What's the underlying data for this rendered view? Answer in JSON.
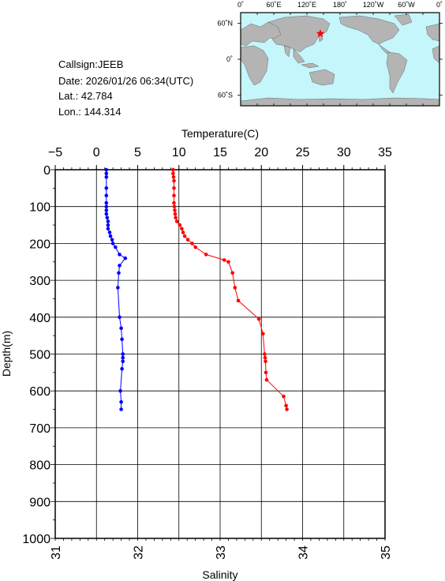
{
  "info": {
    "callsign": "Callsign:JEEB",
    "date": "Date:  2026/01/26 06:34(UTC)",
    "lat": "Lat.:  42.784",
    "lon": "Lon.:  144.314"
  },
  "map": {
    "lon_labels": [
      "0˚",
      "60˚E",
      "120˚E",
      "180˚",
      "120˚W",
      "60˚W",
      "0˚"
    ],
    "lat_labels": [
      "60˚N",
      "0˚",
      "60˚S"
    ],
    "ocean_color": "#c4f6fb",
    "land_color": "#b4b4b4",
    "marker_color": "#ff0000",
    "marker_lon": 144.314,
    "marker_lat": 42.784
  },
  "chart_data": {
    "type": "scatter",
    "temperature_axis": {
      "label": "Temperature(C)",
      "range": [
        -5,
        35
      ],
      "ticks": [
        -5,
        0,
        5,
        10,
        15,
        20,
        25,
        30,
        35
      ],
      "position": "top"
    },
    "salinity_axis": {
      "label": "Salinity",
      "range": [
        31,
        35
      ],
      "ticks": [
        31,
        32,
        33,
        34,
        35
      ],
      "position": "bottom"
    },
    "depth_axis": {
      "label": "Depth(m)",
      "range": [
        0,
        1000
      ],
      "ticks": [
        0,
        100,
        200,
        300,
        400,
        500,
        600,
        700,
        800,
        900,
        1000
      ],
      "inverted": true
    },
    "grid": true,
    "series": [
      {
        "key": "temperature",
        "color": "#ff0000",
        "points": [
          [
            9.3,
            0
          ],
          [
            9.3,
            10
          ],
          [
            9.35,
            20
          ],
          [
            9.4,
            30
          ],
          [
            9.4,
            50
          ],
          [
            9.4,
            70
          ],
          [
            9.4,
            90
          ],
          [
            9.45,
            100
          ],
          [
            9.5,
            110
          ],
          [
            9.55,
            120
          ],
          [
            9.6,
            130
          ],
          [
            9.75,
            140
          ],
          [
            10.1,
            150
          ],
          [
            10.35,
            160
          ],
          [
            10.5,
            170
          ],
          [
            10.7,
            180
          ],
          [
            11.1,
            190
          ],
          [
            11.6,
            200
          ],
          [
            12.0,
            210
          ],
          [
            13.3,
            230
          ],
          [
            15.5,
            245
          ],
          [
            16.0,
            250
          ],
          [
            16.5,
            280
          ],
          [
            16.8,
            320
          ],
          [
            17.2,
            355
          ],
          [
            19.7,
            405
          ],
          [
            20.2,
            445
          ],
          [
            20.4,
            500
          ],
          [
            20.45,
            510
          ],
          [
            20.5,
            520
          ],
          [
            20.55,
            550
          ],
          [
            20.65,
            570
          ],
          [
            22.7,
            615
          ],
          [
            23.0,
            640
          ],
          [
            23.1,
            650
          ]
        ]
      },
      {
        "key": "salinity",
        "color": "#0000ff",
        "points": [
          [
            31.62,
            0
          ],
          [
            31.62,
            10
          ],
          [
            31.62,
            20
          ],
          [
            31.62,
            50
          ],
          [
            31.62,
            70
          ],
          [
            31.62,
            90
          ],
          [
            31.62,
            100
          ],
          [
            31.62,
            110
          ],
          [
            31.62,
            120
          ],
          [
            31.63,
            130
          ],
          [
            31.64,
            140
          ],
          [
            31.64,
            150
          ],
          [
            31.64,
            160
          ],
          [
            31.66,
            170
          ],
          [
            31.67,
            180
          ],
          [
            31.69,
            190
          ],
          [
            31.7,
            200
          ],
          [
            31.73,
            210
          ],
          [
            31.78,
            230
          ],
          [
            31.85,
            240
          ],
          [
            31.78,
            260
          ],
          [
            31.77,
            280
          ],
          [
            31.76,
            320
          ],
          [
            31.78,
            400
          ],
          [
            31.8,
            430
          ],
          [
            31.81,
            460
          ],
          [
            31.82,
            500
          ],
          [
            31.82,
            510
          ],
          [
            31.82,
            520
          ],
          [
            31.81,
            540
          ],
          [
            31.79,
            600
          ],
          [
            31.8,
            630
          ],
          [
            31.8,
            650
          ]
        ]
      }
    ]
  }
}
